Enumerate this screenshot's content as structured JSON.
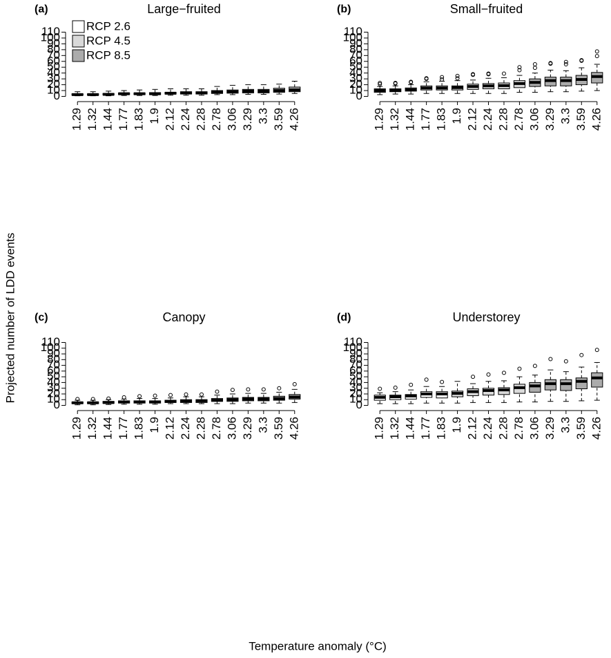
{
  "ylabel": "Projected number of LDD events",
  "xlabel": "Temperature anomaly (°C)",
  "chart_data": [
    {
      "type": "box",
      "label": "(a)",
      "title": "Large−fruited",
      "categories": [
        "1.29",
        "1.32",
        "1.44",
        "1.77",
        "1.83",
        "1.9",
        "2.12",
        "2.24",
        "2.28",
        "2.78",
        "3.06",
        "3.29",
        "3.3",
        "3.59",
        "4.26"
      ],
      "ylim": [
        -3,
        113
      ],
      "yticks": [
        0,
        10,
        20,
        30,
        40,
        50,
        60,
        70,
        80,
        90,
        100,
        110
      ],
      "legend": "top-left",
      "series": [
        {
          "name": "RCP 2.6",
          "color": "#ffffff",
          "values": [
            {
              "low": 1,
              "q1": 2,
              "median": 3,
              "q3": 4.5,
              "high": 8,
              "outliers": []
            },
            {
              "low": 1,
              "q1": 2,
              "median": 3,
              "q3": 4.5,
              "high": 8,
              "outliers": []
            },
            {
              "low": 1,
              "q1": 2.5,
              "median": 3.5,
              "q3": 5,
              "high": 9,
              "outliers": []
            },
            {
              "low": 1.5,
              "q1": 3,
              "median": 4.5,
              "q3": 6,
              "high": 10,
              "outliers": []
            },
            {
              "low": 1.5,
              "q1": 3,
              "median": 4.5,
              "q3": 6,
              "high": 11,
              "outliers": []
            },
            null,
            null,
            null,
            null,
            null,
            null,
            null,
            null,
            null,
            null
          ]
        },
        {
          "name": "RCP 4.5",
          "color": "#d9d9d9",
          "values": [
            null,
            null,
            null,
            null,
            null,
            {
              "low": 1.5,
              "q1": 3,
              "median": 4.5,
              "q3": 6.5,
              "high": 12,
              "outliers": []
            },
            {
              "low": 2,
              "q1": 4,
              "median": 5.5,
              "q3": 7,
              "high": 13,
              "outliers": []
            },
            {
              "low": 2,
              "q1": 4,
              "median": 6,
              "q3": 8,
              "high": 13,
              "outliers": []
            },
            {
              "low": 2,
              "q1": 4,
              "median": 6,
              "q3": 8,
              "high": 13,
              "outliers": []
            },
            {
              "low": 3,
              "q1": 5,
              "median": 7,
              "q3": 10,
              "high": 17,
              "outliers": []
            },
            null,
            null,
            null,
            null,
            null
          ]
        },
        {
          "name": "RCP 8.5",
          "color": "#ababab",
          "values": [
            null,
            null,
            null,
            null,
            null,
            null,
            null,
            null,
            null,
            null,
            {
              "low": 3,
              "q1": 5.5,
              "median": 8,
              "q3": 11,
              "high": 19,
              "outliers": []
            },
            {
              "low": 3.5,
              "q1": 6,
              "median": 9,
              "q3": 12,
              "high": 20,
              "outliers": []
            },
            {
              "low": 3.5,
              "q1": 6,
              "median": 9,
              "q3": 12,
              "high": 20,
              "outliers": []
            },
            {
              "low": 4,
              "q1": 7,
              "median": 10,
              "q3": 14,
              "high": 21,
              "outliers": []
            },
            {
              "low": 5,
              "q1": 8,
              "median": 11,
              "q3": 16,
              "high": 26,
              "outliers": []
            }
          ]
        }
      ]
    },
    {
      "type": "box",
      "label": "(b)",
      "title": "Small−fruited",
      "categories": [
        "1.29",
        "1.32",
        "1.44",
        "1.77",
        "1.83",
        "1.9",
        "2.12",
        "2.24",
        "2.28",
        "2.78",
        "3.06",
        "3.29",
        "3.3",
        "3.59",
        "4.26"
      ],
      "ylim": [
        -3,
        113
      ],
      "yticks": [
        0,
        10,
        20,
        30,
        40,
        50,
        60,
        70,
        80,
        90,
        100,
        110
      ],
      "series": [
        {
          "color": "#ffffff",
          "values": [
            {
              "low": 3,
              "q1": 7,
              "median": 10,
              "q3": 13,
              "high": 17,
              "outliers": [
                21,
                23
              ]
            },
            {
              "low": 4,
              "q1": 8,
              "median": 10.5,
              "q3": 13,
              "high": 18,
              "outliers": [
                22,
                23
              ]
            },
            {
              "low": 4,
              "q1": 9,
              "median": 11.5,
              "q3": 14.5,
              "high": 20,
              "outliers": [
                24,
                25
              ]
            },
            {
              "low": 5,
              "q1": 11,
              "median": 14.5,
              "q3": 18,
              "high": 25,
              "outliers": [
                30,
                31
              ]
            },
            {
              "low": 5,
              "q1": 11,
              "median": 14.5,
              "q3": 18,
              "high": 26,
              "outliers": [
                29,
                33
              ]
            },
            null,
            null,
            null,
            null,
            null,
            null,
            null,
            null,
            null,
            null
          ]
        },
        {
          "color": "#d9d9d9",
          "values": [
            null,
            null,
            null,
            null,
            null,
            {
              "low": 5,
              "q1": 11,
              "median": 15,
              "q3": 18,
              "high": 27,
              "outliers": [
                31,
                35
              ]
            },
            {
              "low": 5,
              "q1": 12,
              "median": 17,
              "q3": 21,
              "high": 28,
              "outliers": [
                37,
                38
              ]
            },
            {
              "low": 5,
              "q1": 13,
              "median": 18,
              "q3": 22,
              "high": 31,
              "outliers": [
                38,
                39
              ]
            },
            {
              "low": 5,
              "q1": 13,
              "median": 18.5,
              "q3": 23,
              "high": 32,
              "outliers": [
                39
              ]
            },
            {
              "low": 7,
              "q1": 15,
              "median": 22,
              "q3": 27,
              "high": 36,
              "outliers": [
                45,
                50
              ]
            },
            null,
            null,
            null,
            null,
            null
          ]
        },
        {
          "color": "#ababab",
          "values": [
            null,
            null,
            null,
            null,
            null,
            null,
            null,
            null,
            null,
            null,
            {
              "low": 7,
              "q1": 17,
              "median": 24,
              "q3": 30,
              "high": 40,
              "outliers": [
                49,
                55
              ]
            },
            {
              "low": 8,
              "q1": 18,
              "median": 27,
              "q3": 33,
              "high": 45,
              "outliers": [
                56,
                57
              ]
            },
            {
              "low": 8,
              "q1": 18,
              "median": 27,
              "q3": 33,
              "high": 44,
              "outliers": [
                55,
                59
              ]
            },
            {
              "low": 9,
              "q1": 20,
              "median": 29,
              "q3": 36,
              "high": 49,
              "outliers": [
                61,
                62
              ]
            },
            {
              "low": 10,
              "q1": 23,
              "median": 34,
              "q3": 41,
              "high": 55,
              "outliers": [
                69,
                77
              ]
            }
          ]
        }
      ]
    },
    {
      "type": "box",
      "label": "(c)",
      "title": "Canopy",
      "categories": [
        "1.29",
        "1.32",
        "1.44",
        "1.77",
        "1.83",
        "1.9",
        "2.12",
        "2.24",
        "2.28",
        "2.78",
        "3.06",
        "3.29",
        "3.3",
        "3.59",
        "4.26"
      ],
      "ylim": [
        -3,
        113
      ],
      "yticks": [
        0,
        10,
        20,
        30,
        40,
        50,
        60,
        70,
        80,
        90,
        100,
        110
      ],
      "series": [
        {
          "color": "#ffffff",
          "values": [
            {
              "low": 1,
              "q1": 3,
              "median": 4.5,
              "q3": 6,
              "high": 9,
              "outliers": [
                11
              ]
            },
            {
              "low": 1,
              "q1": 3,
              "median": 4.5,
              "q3": 6,
              "high": 9,
              "outliers": [
                11
              ]
            },
            {
              "low": 1.5,
              "q1": 3.5,
              "median": 5,
              "q3": 7,
              "high": 10,
              "outliers": [
                12
              ]
            },
            {
              "low": 2,
              "q1": 4,
              "median": 6,
              "q3": 8,
              "high": 11,
              "outliers": [
                14
              ]
            },
            {
              "low": 2,
              "q1": 4,
              "median": 6,
              "q3": 8,
              "high": 12,
              "outliers": [
                16
              ]
            },
            null,
            null,
            null,
            null,
            null,
            null,
            null,
            null,
            null,
            null
          ]
        },
        {
          "color": "#d9d9d9",
          "values": [
            null,
            null,
            null,
            null,
            null,
            {
              "low": 2,
              "q1": 4,
              "median": 6,
              "q3": 8,
              "high": 12,
              "outliers": [
                17
              ]
            },
            {
              "low": 3,
              "q1": 5,
              "median": 7,
              "q3": 9,
              "high": 13,
              "outliers": [
                18
              ]
            },
            {
              "low": 3,
              "q1": 5,
              "median": 7.5,
              "q3": 10,
              "high": 15,
              "outliers": [
                19
              ]
            },
            {
              "low": 3,
              "q1": 5,
              "median": 8,
              "q3": 10,
              "high": 15,
              "outliers": [
                19
              ]
            },
            {
              "low": 3,
              "q1": 7,
              "median": 9,
              "q3": 12,
              "high": 18,
              "outliers": [
                24
              ]
            },
            null,
            null,
            null,
            null,
            null
          ]
        },
        {
          "color": "#ababab",
          "values": [
            null,
            null,
            null,
            null,
            null,
            null,
            null,
            null,
            null,
            null,
            {
              "low": 3,
              "q1": 7,
              "median": 10,
              "q3": 13,
              "high": 20,
              "outliers": [
                27
              ]
            },
            {
              "low": 4,
              "q1": 8,
              "median": 11,
              "q3": 14,
              "high": 21,
              "outliers": [
                28
              ]
            },
            {
              "low": 4,
              "q1": 8,
              "median": 11,
              "q3": 14,
              "high": 21,
              "outliers": [
                28
              ]
            },
            {
              "low": 4,
              "q1": 9,
              "median": 12,
              "q3": 16,
              "high": 23,
              "outliers": [
                30
              ]
            },
            {
              "low": 5,
              "q1": 11,
              "median": 14.5,
              "q3": 19,
              "high": 28,
              "outliers": [
                37
              ]
            }
          ]
        }
      ]
    },
    {
      "type": "box",
      "label": "(d)",
      "title": "Understorey",
      "categories": [
        "1.29",
        "1.32",
        "1.44",
        "1.77",
        "1.83",
        "1.9",
        "2.12",
        "2.24",
        "2.28",
        "2.78",
        "3.06",
        "3.29",
        "3.3",
        "3.59",
        "4.26"
      ],
      "ylim": [
        -3,
        113
      ],
      "yticks": [
        0,
        10,
        20,
        30,
        40,
        50,
        60,
        70,
        80,
        90,
        100,
        110
      ],
      "series": [
        {
          "color": "#ffffff",
          "values": [
            {
              "low": 3,
              "q1": 9,
              "median": 14,
              "q3": 18,
              "high": 22,
              "outliers": [
                29
              ]
            },
            {
              "low": 3,
              "q1": 10,
              "median": 15,
              "q3": 18,
              "high": 24,
              "outliers": [
                31
              ]
            },
            {
              "low": 3,
              "q1": 11,
              "median": 16.5,
              "q3": 19,
              "high": 27,
              "outliers": [
                36
              ]
            },
            {
              "low": 4,
              "q1": 14,
              "median": 20,
              "q3": 24,
              "high": 33,
              "outliers": [
                45
              ]
            },
            {
              "low": 4,
              "q1": 13,
              "median": 20,
              "q3": 24,
              "high": 33,
              "outliers": [
                41
              ]
            },
            null,
            null,
            null,
            null,
            null,
            null,
            null,
            null,
            null,
            null
          ]
        },
        {
          "color": "#d9d9d9",
          "values": [
            null,
            null,
            null,
            null,
            null,
            {
              "low": 4,
              "q1": 15,
              "median": 21,
              "q3": 25,
              "high": 42,
              "outliers": []
            },
            {
              "low": 5,
              "q1": 17,
              "median": 24,
              "q3": 29,
              "high": 38,
              "outliers": [
                50
              ]
            },
            {
              "low": 5,
              "q1": 18,
              "median": 26,
              "q3": 30,
              "high": 42,
              "outliers": [
                54
              ]
            },
            {
              "low": 5,
              "q1": 19,
              "median": 27,
              "q3": 31,
              "high": 43,
              "outliers": [
                57
              ]
            },
            {
              "low": 6,
              "q1": 21,
              "median": 31,
              "q3": 37,
              "high": 50,
              "outliers": [
                64
              ]
            },
            null,
            null,
            null,
            null,
            null
          ]
        },
        {
          "color": "#ababab",
          "values": [
            null,
            null,
            null,
            null,
            null,
            null,
            null,
            null,
            null,
            null,
            {
              "low": 6,
              "q1": 23,
              "median": 34,
              "q3": 40,
              "high": 53,
              "outliers": [
                69
              ]
            },
            {
              "low": 7,
              "q1": 27,
              "median": 38,
              "q3": 45,
              "high": 62,
              "outliers": [
                81
              ]
            },
            {
              "low": 7,
              "q1": 26,
              "median": 38,
              "q3": 45,
              "high": 59,
              "outliers": [
                77
              ]
            },
            {
              "low": 8,
              "q1": 29,
              "median": 42,
              "q3": 48,
              "high": 67,
              "outliers": [
                88
              ]
            },
            {
              "low": 9,
              "q1": 32,
              "median": 48,
              "q3": 57,
              "high": 75,
              "outliers": [
                97
              ]
            }
          ]
        }
      ]
    }
  ]
}
